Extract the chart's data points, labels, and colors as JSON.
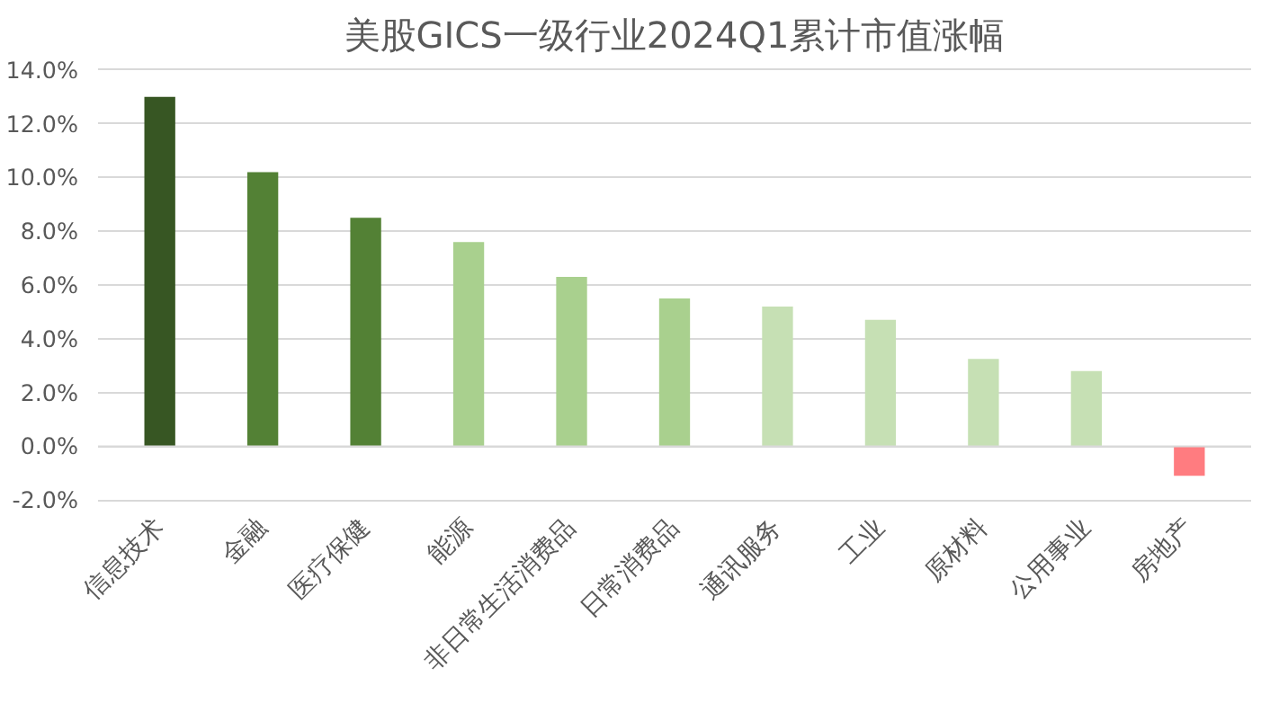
{
  "chart_data": {
    "type": "bar",
    "title": "美股GICS一级行业2024Q1累计市值涨幅",
    "categories": [
      "信息技术",
      "金融",
      "医疗保健",
      "能源",
      "非日常生活消费品",
      "日常消费品",
      "通讯服务",
      "工业",
      "原材料",
      "公用事业",
      "房地产"
    ],
    "values": [
      13.0,
      10.2,
      8.5,
      7.6,
      6.3,
      5.5,
      5.2,
      4.7,
      3.25,
      2.8,
      -1.1
    ],
    "colors": [
      "#375623",
      "#538135",
      "#538135",
      "#a9d08e",
      "#a9d08e",
      "#a9d08e",
      "#c6e0b4",
      "#c6e0b4",
      "#c6e0b4",
      "#c6e0b4",
      "#ff7c80"
    ],
    "ylim": [
      -2,
      14
    ],
    "yticks": [
      {
        "value": -2,
        "label": "-2.0%"
      },
      {
        "value": 0,
        "label": "0.0%"
      },
      {
        "value": 2,
        "label": "2.0%"
      },
      {
        "value": 4,
        "label": "4.0%"
      },
      {
        "value": 6,
        "label": "6.0%"
      },
      {
        "value": 8,
        "label": "8.0%"
      },
      {
        "value": 10,
        "label": "10.0%"
      },
      {
        "value": 12,
        "label": "12.0%"
      },
      {
        "value": 14,
        "label": "14.0%"
      }
    ],
    "grid": "y"
  }
}
